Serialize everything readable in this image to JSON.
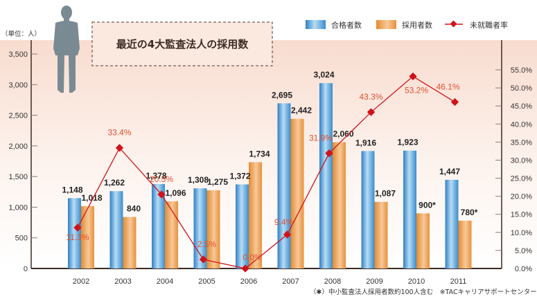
{
  "chart_data": {
    "type": "bar",
    "title": "最近の4大監査法人の採用数",
    "unit_label": "（単位：人）",
    "categories": [
      "2002",
      "2003",
      "2004",
      "2005",
      "2006",
      "2007",
      "2008",
      "2009",
      "2010",
      "2011"
    ],
    "series": [
      {
        "name": "合格者数",
        "type": "bar",
        "axis": "left",
        "color": "#3b8fd0",
        "values": [
          1148,
          1262,
          1378,
          1308,
          1372,
          2695,
          3024,
          1916,
          1923,
          1447
        ],
        "labels": [
          "1,148",
          "1,262",
          "1,378",
          "1,308",
          "1,372",
          "2,695",
          "3,024",
          "1,916",
          "1,923",
          "1,447"
        ]
      },
      {
        "name": "採用者数",
        "type": "bar",
        "axis": "left",
        "color": "#e8913a",
        "values": [
          1018,
          840,
          1096,
          1275,
          1734,
          2442,
          2060,
          1087,
          900,
          780
        ],
        "labels": [
          "1,018",
          "840",
          "1,096",
          "1,275",
          "1,734",
          "2,442",
          "2,060",
          "1,087",
          "900",
          "780"
        ],
        "label_suffix": [
          "",
          "",
          "",
          "",
          "",
          "",
          "",
          "",
          "*",
          "*"
        ]
      },
      {
        "name": "未就職者率",
        "type": "line",
        "axis": "right",
        "color": "#d0121b",
        "label_color": "#e05030",
        "marker": "diamond",
        "values": [
          11.3,
          33.4,
          20.5,
          2.5,
          0.0,
          9.4,
          31.9,
          43.3,
          53.2,
          46.1
        ],
        "labels": [
          "11.3%",
          "33.4%",
          "20.5%",
          "2.5%",
          "0.0%",
          "9.4%",
          "31.9%",
          "43.3%",
          "53.2%",
          "46.1%"
        ]
      }
    ],
    "y_left": {
      "ylim": [
        0,
        3500
      ],
      "ticks": [
        0,
        500,
        1000,
        1500,
        2000,
        2500,
        3000,
        3500
      ],
      "tick_labels": [
        "0",
        "500",
        "1,000",
        "1,500",
        "2,000",
        "2,500",
        "3,000",
        "3,500"
      ]
    },
    "y_right": {
      "ylim": [
        0,
        55
      ],
      "ticks": [
        0,
        5,
        10,
        15,
        20,
        25,
        30,
        35,
        40,
        45,
        50,
        55
      ],
      "tick_labels": [
        "0.0%",
        "5.0%",
        "10.0%",
        "15.0%",
        "20.0%",
        "25.0%",
        "30.0%",
        "35.0%",
        "40.0%",
        "45.0%",
        "50.0%",
        "55.0%"
      ]
    },
    "xlabel": "",
    "ylabel": "",
    "grid": false,
    "legend": {
      "placement": "top-right",
      "entries": [
        "合格者数",
        "採用者数",
        "未就職者率"
      ]
    },
    "footnote": "（✱）中小監査法人採用者数約100人含む　※TACキャリアサポートセンター調べ"
  },
  "colors": {
    "background_top": "#f8dccf",
    "background_bottom": "#ffffff",
    "silhouette": "#7a8a93",
    "axis": "#3a2a22"
  }
}
